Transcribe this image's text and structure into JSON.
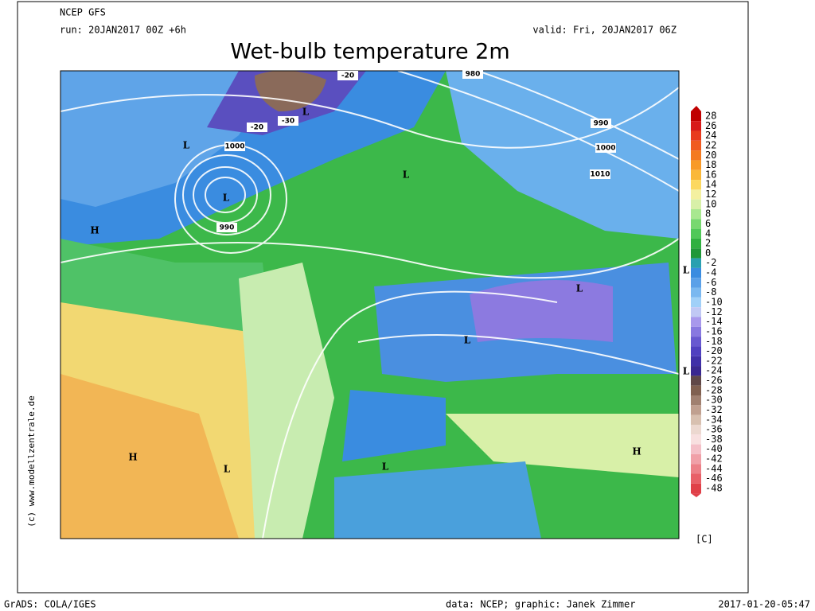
{
  "header": {
    "model": "NCEP GFS",
    "run": "run: 20JAN2017 00Z +6h",
    "valid": "valid: Fri, 20JAN2017 06Z",
    "title": "Wet-bulb temperature 2m"
  },
  "side_credit": "(c) www.modellzentrale.de",
  "map_labels": [
    "L",
    "-30",
    "-20",
    "-20",
    "980",
    "990",
    "1000",
    "1010",
    "L",
    "1000",
    "L",
    "990",
    "H",
    "L",
    "L",
    "L",
    "L",
    "L",
    "H",
    "H",
    "L",
    "L"
  ],
  "colorbar": {
    "labels": [
      "28",
      "26",
      "24",
      "22",
      "20",
      "18",
      "16",
      "14",
      "12",
      "10",
      "8",
      "6",
      "4",
      "2",
      "0",
      "-2",
      "-4",
      "-6",
      "-8",
      "-10",
      "-12",
      "-14",
      "-16",
      "-18",
      "-20",
      "-22",
      "-24",
      "-26",
      "-28",
      "-30",
      "-32",
      "-34",
      "-36",
      "-38",
      "-40",
      "-42",
      "-44",
      "-46",
      "-48"
    ],
    "unit": "[C]"
  },
  "footer": {
    "left": "GrADS: COLA/IGES",
    "center": "data: NCEP; graphic: Janek Zimmer",
    "right": "2017-01-20-05:47"
  }
}
